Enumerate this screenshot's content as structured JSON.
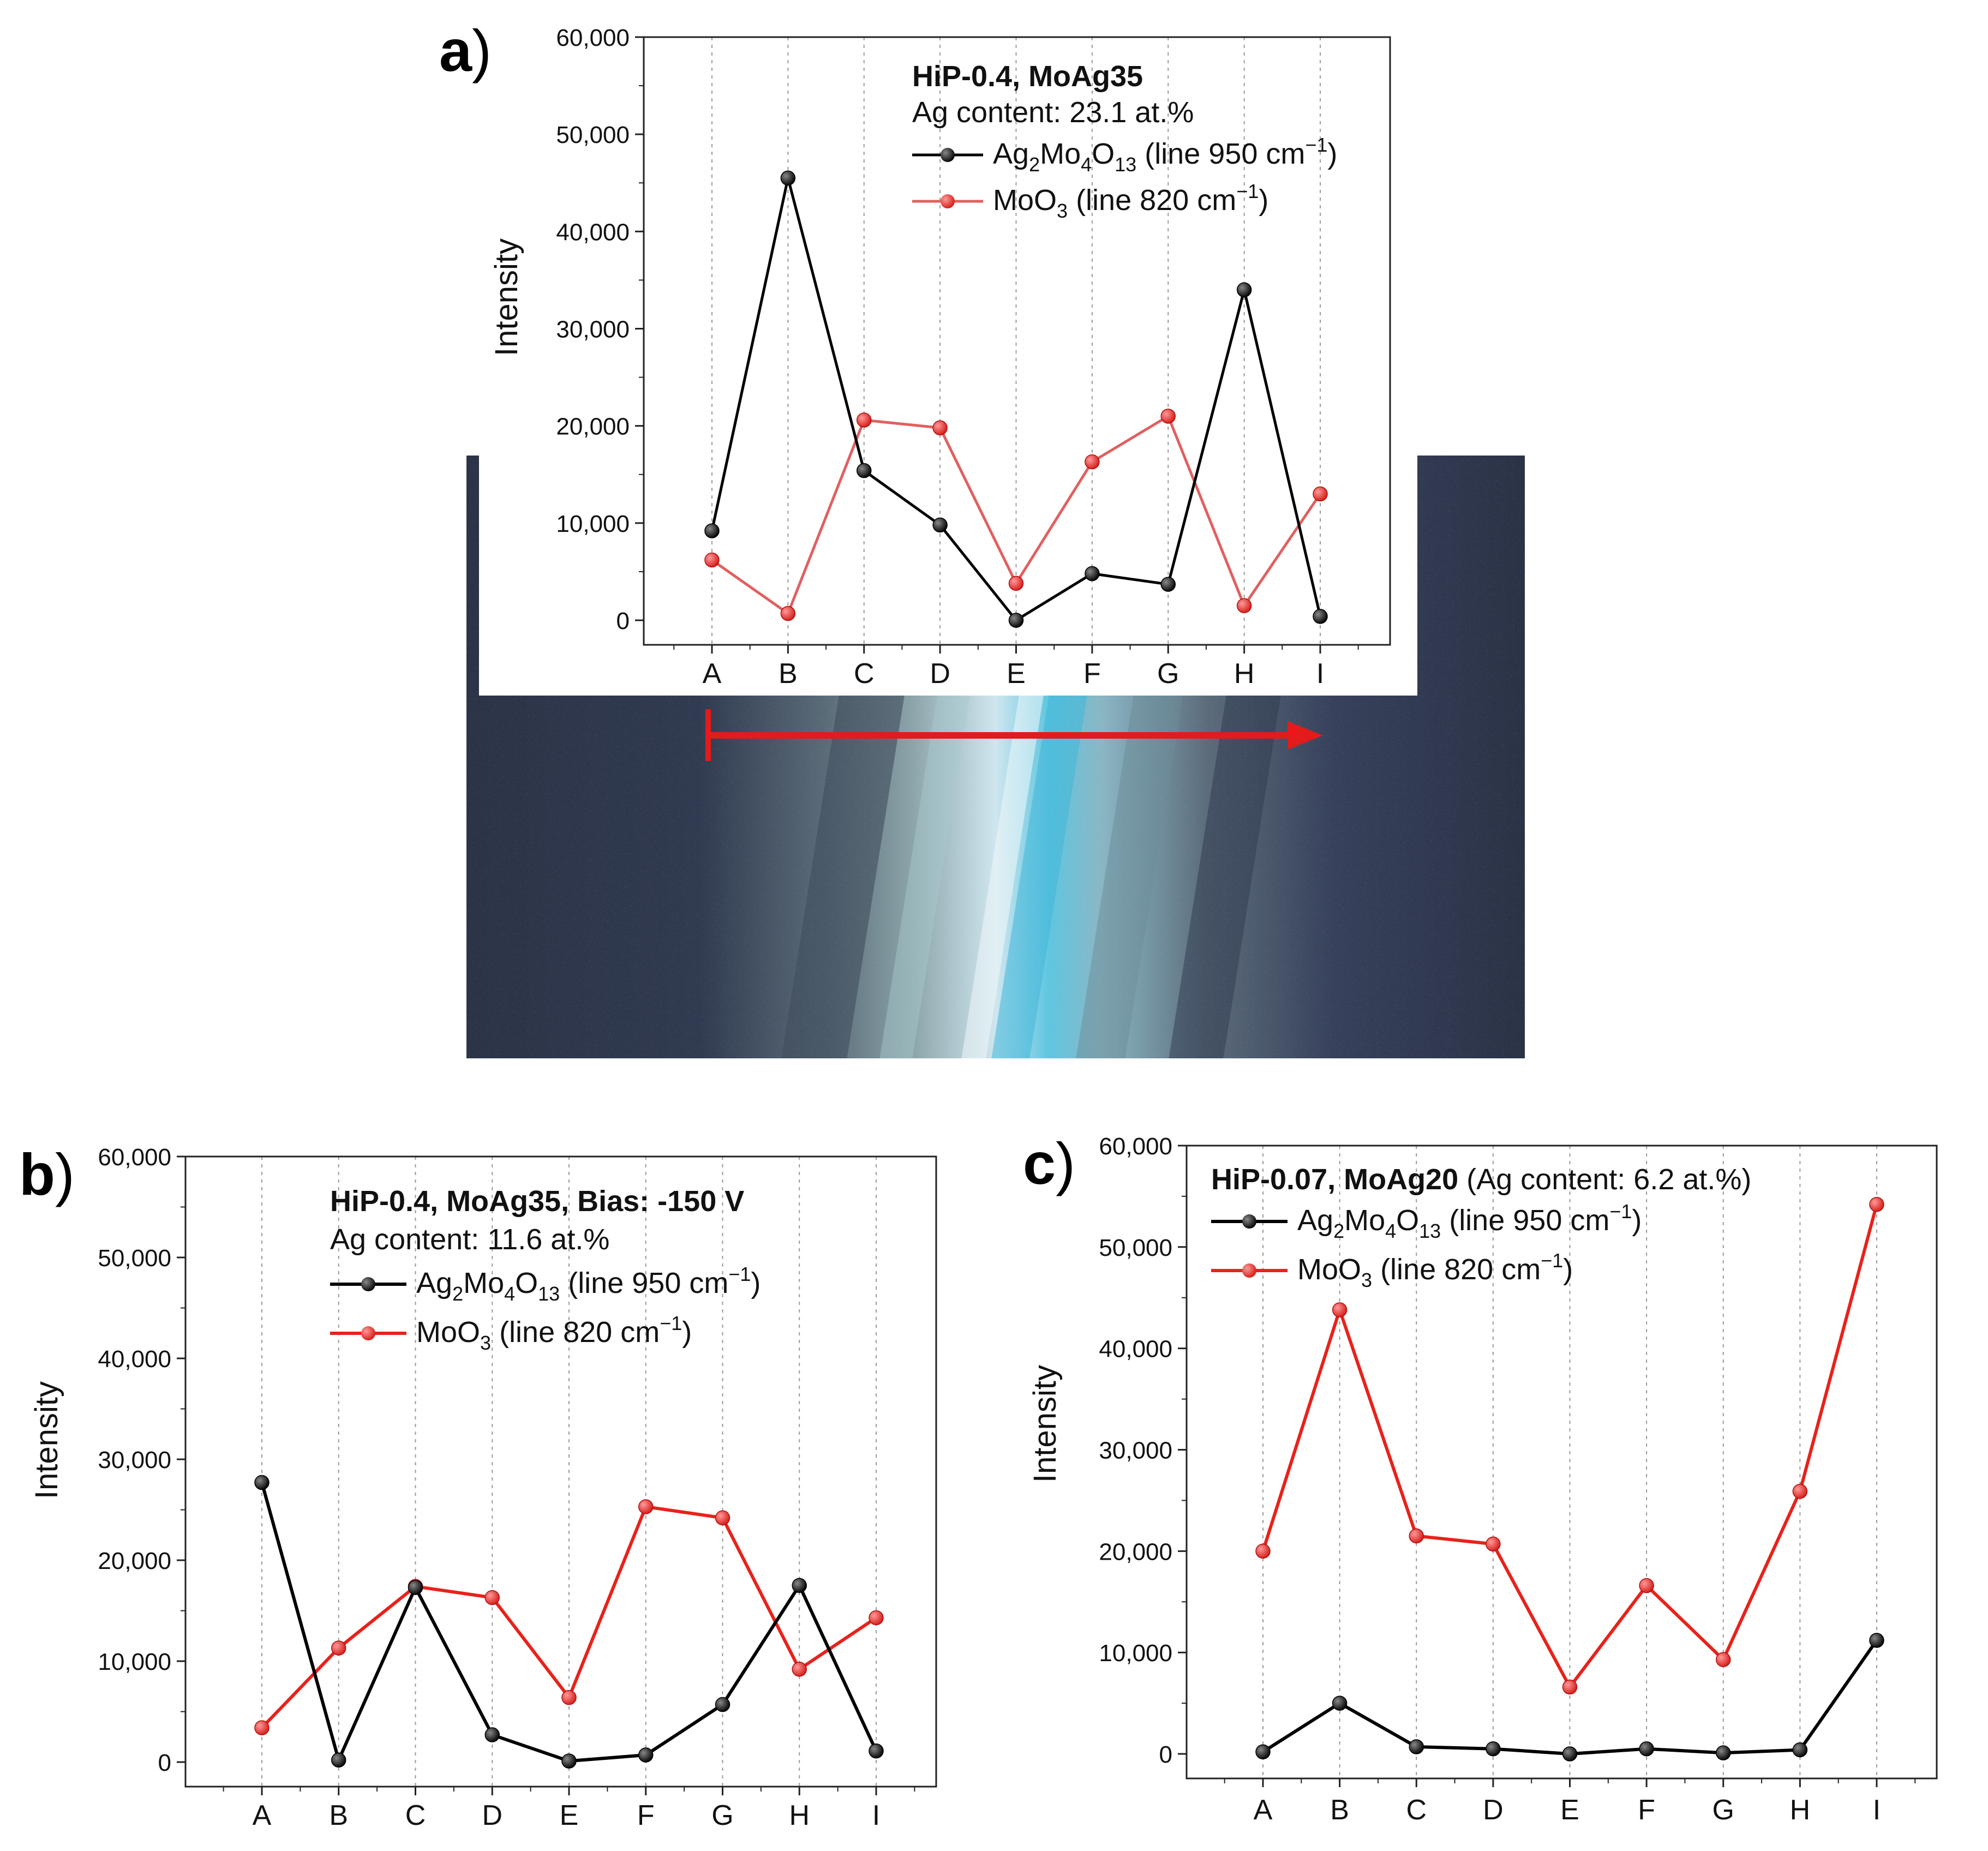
{
  "panels": {
    "a": {
      "letter": "a",
      "paren": ")"
    },
    "b": {
      "letter": "b",
      "paren": ")"
    },
    "c": {
      "letter": "c",
      "paren": ")"
    }
  },
  "colors": {
    "black_series": "#000000",
    "red_series": "#e8221b",
    "red_faint": "#e06060",
    "arrow": "#e31b1b",
    "grid": "#9a9a9a"
  },
  "chart_data": [
    {
      "id": "a",
      "type": "line",
      "categories": [
        "A",
        "B",
        "C",
        "D",
        "E",
        "F",
        "G",
        "H",
        "I"
      ],
      "ylabel": "Intensity",
      "ylim": [
        0,
        60000
      ],
      "yticks": [
        "0",
        "10,000",
        "20,000",
        "30,000",
        "40,000",
        "50,000",
        "60,000"
      ],
      "annotation": {
        "title": "HiP-0.4, MoAg35",
        "subtitle": "Ag content: 23.1 at.%"
      },
      "legend_placement": "top-right",
      "series": [
        {
          "name": "Ag2Mo4O13 (line 950 cm-1)",
          "color": "#000000",
          "values": [
            9200,
            45500,
            15400,
            9800,
            0,
            4800,
            3700,
            34000,
            400
          ]
        },
        {
          "name": "MoO3 (line 820 cm-1)",
          "color": "#e06060",
          "values": [
            6200,
            700,
            20600,
            19800,
            3800,
            16300,
            21000,
            1500,
            13000
          ]
        }
      ]
    },
    {
      "id": "b",
      "type": "line",
      "categories": [
        "A",
        "B",
        "C",
        "D",
        "E",
        "F",
        "G",
        "H",
        "I"
      ],
      "ylabel": "Intensity",
      "ylim": [
        0,
        60000
      ],
      "yticks": [
        "0",
        "10,000",
        "20,000",
        "30,000",
        "40,000",
        "50,000",
        "60,000"
      ],
      "annotation": {
        "title": "HiP-0.4, MoAg35, Bias: -150 V",
        "subtitle": "Ag content: 11.6 at.%"
      },
      "legend_placement": "top-right",
      "series": [
        {
          "name": "Ag2Mo4O13 (line 950 cm-1)",
          "color": "#000000",
          "values": [
            27700,
            200,
            17300,
            2700,
            100,
            700,
            5700,
            17500,
            1100
          ]
        },
        {
          "name": "MoO3 (line 820 cm-1)",
          "color": "#e8221b",
          "values": [
            3400,
            11300,
            17400,
            16300,
            6400,
            25300,
            24200,
            9200,
            14300
          ]
        }
      ]
    },
    {
      "id": "c",
      "type": "line",
      "categories": [
        "A",
        "B",
        "C",
        "D",
        "E",
        "F",
        "G",
        "H",
        "I"
      ],
      "ylabel": "Intensity",
      "ylim": [
        0,
        60000
      ],
      "yticks": [
        "0",
        "10,000",
        "20,000",
        "30,000",
        "40,000",
        "50,000",
        "60,000"
      ],
      "annotation": {
        "title": "HiP-0.07, MoAg20",
        "subtitle": " (Ag content: 6.2 at.%)"
      },
      "legend_placement": "top-left",
      "series": [
        {
          "name": "Ag2Mo4O13 (line 950 cm-1)",
          "color": "#000000",
          "values": [
            200,
            5000,
            700,
            500,
            0,
            500,
            100,
            400,
            11200
          ]
        },
        {
          "name": "MoO3 (line 820 cm-1)",
          "color": "#e8221b",
          "values": [
            20000,
            43800,
            21500,
            20700,
            6600,
            16600,
            9300,
            25900,
            54200
          ]
        }
      ]
    }
  ],
  "legend_text": {
    "ag": {
      "pre": "Ag",
      "s1": "2",
      "m1": "Mo",
      "s2": "4",
      "m2": "O",
      "s3": "13",
      "post": " (line 950 cm",
      "sup": "−1",
      "close": ")"
    },
    "moo": {
      "pre": "MoO",
      "s1": "3",
      "post": " (line 820 cm",
      "sup": "−1",
      "close": ")"
    }
  }
}
